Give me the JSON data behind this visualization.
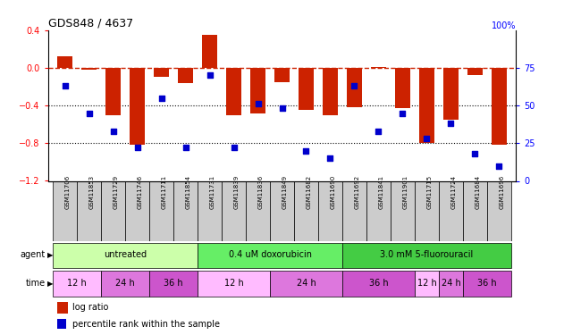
{
  "title": "GDS848 / 4637",
  "samples": [
    "GSM11706",
    "GSM11853",
    "GSM11729",
    "GSM11746",
    "GSM11711",
    "GSM11854",
    "GSM11731",
    "GSM11839",
    "GSM11836",
    "GSM11849",
    "GSM11682",
    "GSM11690",
    "GSM11692",
    "GSM11841",
    "GSM11901",
    "GSM11715",
    "GSM11724",
    "GSM11684",
    "GSM11696"
  ],
  "log_ratio": [
    0.12,
    -0.02,
    -0.5,
    -0.82,
    -0.1,
    -0.16,
    0.35,
    -0.5,
    -0.48,
    -0.15,
    -0.45,
    -0.5,
    -0.42,
    0.01,
    -0.43,
    -0.8,
    -0.55,
    -0.08,
    -0.82
  ],
  "percentile": [
    63,
    45,
    33,
    22,
    55,
    22,
    70,
    22,
    51,
    48,
    20,
    15,
    63,
    33,
    45,
    28,
    38,
    18,
    10
  ],
  "bar_color": "#cc2200",
  "dot_color": "#0000cc",
  "dashed_color": "#cc2200",
  "dotted_color": "#000000",
  "ylim_left": [
    -1.2,
    0.4
  ],
  "ylim_right": [
    0,
    100
  ],
  "yticks_left": [
    0.4,
    0.0,
    -0.4,
    -0.8,
    -1.2
  ],
  "yticks_right": [
    100,
    75,
    50,
    25,
    0
  ],
  "agents": [
    {
      "label": "untreated",
      "color": "#ccffaa",
      "start": 0,
      "end": 6
    },
    {
      "label": "0.4 uM doxorubicin",
      "color": "#66ee66",
      "start": 6,
      "end": 12
    },
    {
      "label": "3.0 mM 5-fluorouracil",
      "color": "#44cc44",
      "start": 12,
      "end": 19
    }
  ],
  "times": [
    {
      "label": "12 h",
      "color": "#ffbbff",
      "start": 0,
      "end": 2
    },
    {
      "label": "24 h",
      "color": "#dd77dd",
      "start": 2,
      "end": 4
    },
    {
      "label": "36 h",
      "color": "#cc55cc",
      "start": 4,
      "end": 6
    },
    {
      "label": "12 h",
      "color": "#ffbbff",
      "start": 6,
      "end": 9
    },
    {
      "label": "24 h",
      "color": "#dd77dd",
      "start": 9,
      "end": 12
    },
    {
      "label": "36 h",
      "color": "#cc55cc",
      "start": 12,
      "end": 15
    },
    {
      "label": "12 h",
      "color": "#ffbbff",
      "start": 15,
      "end": 16
    },
    {
      "label": "24 h",
      "color": "#dd77dd",
      "start": 16,
      "end": 17
    },
    {
      "label": "36 h",
      "color": "#cc55cc",
      "start": 17,
      "end": 19
    }
  ],
  "bg_color": "#ffffff",
  "legend_bar_label": "log ratio",
  "legend_dot_label": "percentile rank within the sample"
}
